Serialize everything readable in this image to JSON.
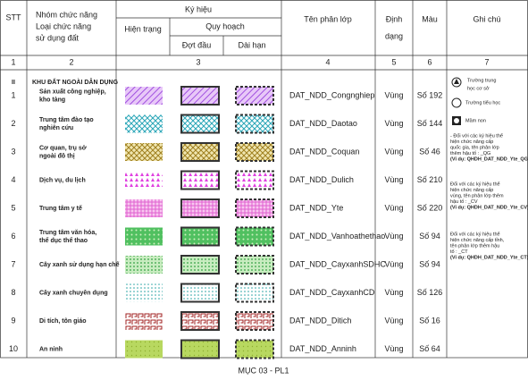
{
  "header": {
    "stt": "STT",
    "group": [
      "Nhóm chức năng",
      "Loại chức năng",
      "sử dụng đất"
    ],
    "symbol": "Ký hiệu",
    "current": "Hiện trạng",
    "planning": "Quy hoạch",
    "phase1": "Đợt đầu",
    "longterm": "Dài hạn",
    "layer": "Tên phân lớp",
    "format": [
      "Định",
      "dạng"
    ],
    "color": "Màu",
    "note": "Ghi chú"
  },
  "column_numbers": [
    "1",
    "2",
    "3",
    "4",
    "5",
    "6",
    "7"
  ],
  "section": {
    "number": "II",
    "title": "KHU ĐẤT NGOÀI DÂN DỤNG"
  },
  "rows": [
    {
      "stt": "1",
      "name": [
        "Sản xuất công nghiệp,",
        "kho tàng"
      ],
      "layer": "DAT_NDD_Congnghiep",
      "format": "Vùng",
      "color": "Số 192"
    },
    {
      "stt": "2",
      "name": [
        "Trung tâm đào tạo",
        "nghiên cứu"
      ],
      "layer": "DAT_NDD_Daotao",
      "format": "Vùng",
      "color": "Số 144"
    },
    {
      "stt": "3",
      "name": [
        "Cơ quan, trụ sở",
        "ngoài đô thị"
      ],
      "layer": "DAT_NDD_Coquan",
      "format": "Vùng",
      "color": "Số 46"
    },
    {
      "stt": "4",
      "name": [
        "Dịch vụ, du lịch"
      ],
      "layer": "DAT_NDD_Dulich",
      "format": "Vùng",
      "color": "Số 210"
    },
    {
      "stt": "5",
      "name": [
        "Trung tâm y tế"
      ],
      "layer": "DAT_NDD_Yte",
      "format": "Vùng",
      "color": "Số 220"
    },
    {
      "stt": "6",
      "name": [
        "Trung tâm văn hóa,",
        "thể dục thể thao"
      ],
      "layer": "DAT_NDD_Vanhoathethao",
      "format": "Vùng",
      "color": "Số 94"
    },
    {
      "stt": "7",
      "name": [
        "Cây xanh sử dụng hạn chế"
      ],
      "layer": "DAT_NDD_CayxanhSDHC",
      "format": "Vùng",
      "color": "Số 94"
    },
    {
      "stt": "8",
      "name": [
        "Cây xanh chuyên dụng"
      ],
      "layer": "DAT_NDD_CayxanhCD",
      "format": "Vùng",
      "color": "Số 126"
    },
    {
      "stt": "9",
      "name": [
        "Di tích, tôn giáo"
      ],
      "layer": "DAT_NDD_Ditich",
      "format": "Vùng",
      "color": "Số 16"
    },
    {
      "stt": "10",
      "name": [
        "An ninh"
      ],
      "layer": "DAT_NDD_Anninh",
      "format": "Vùng",
      "color": "Số 64"
    }
  ],
  "notes": {
    "legend": [
      [
        "Trường trung",
        "học cơ sở"
      ],
      [
        "Trường tiểu học"
      ],
      [
        "Mầm non"
      ]
    ],
    "paragraphs": [
      [
        "- Đối với các ký hiệu thể",
        "hiện chức năng cấp",
        "quốc gia, tên phân lớp",
        "thêm hậu tố : _QG",
        "(Ví dụ: QHDH_DAT_NDD_Yte_QG)"
      ],
      [
        "Đối với các ký hiệu thể",
        "hiện chức năng cấp",
        "vùng, tên phân lớp thêm",
        "hậu tố : _CV",
        "(Ví dụ: QHDH_DAT_NDD_Yte_CV)"
      ],
      [
        "Đối với các ký hiệu thể",
        "hiện chức năng cấp tỉnh,",
        "tên phân lớp thêm hậu",
        "tố : _CT",
        "(Ví dụ: QHDH_DAT_NDD_Yte_CT)"
      ]
    ]
  },
  "footer": "MỤC 03 - PL1"
}
